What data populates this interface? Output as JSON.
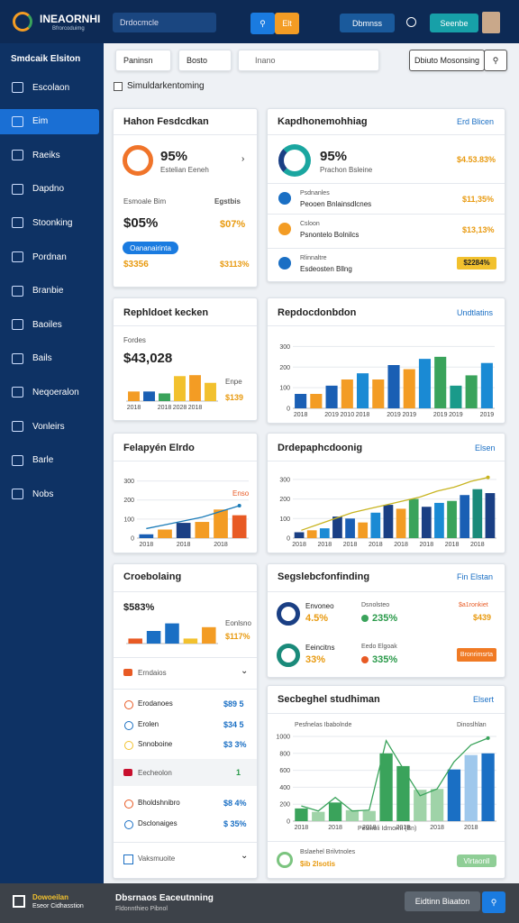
{
  "header": {
    "logo_title": "INEAORNHI",
    "logo_sub": "Bfrorcoduimg",
    "search": "Drdocmcle",
    "orange_button": "Elt",
    "button_1": "Dbmnss",
    "button_2": "Seenbe"
  },
  "sidebar": {
    "heading": "Smdcaik Elsiton",
    "items": [
      "Escolaon",
      "Eim",
      "Raeiks",
      "Dapdno",
      "Stoonking",
      "Pordnan",
      "Branbie",
      "Baoiles",
      "Bails",
      "Neqoeralon",
      "Vonleirs",
      "Barle",
      "Nobs"
    ]
  },
  "toolbar": {
    "select_1": "Paninsn",
    "select_2": "Bosto",
    "search": "Inano",
    "button": "Dbiuto Mosonsing",
    "checkbox": "Simuldarkentoming"
  },
  "card_1": {
    "title": "Hahon Fesdcdkan",
    "big": "95%",
    "sub": "Estelian Eeneh",
    "row_label": "Esmoale Bim",
    "row_right": "Egstbis",
    "big_2": "$05%",
    "small_2": "$07%",
    "pill": "Oananairinta",
    "amount_1": "$3356",
    "amount_2": "$3113%"
  },
  "card_2": {
    "title": "Kapdhonemohhiag",
    "link": "Erd Blicen",
    "big": "95%",
    "sub": "Prachon Bsleine",
    "amount": "$4.53.83%",
    "items": [
      {
        "title": "Psdnanles",
        "sub": "Peooen Bnlainsdlcnes",
        "value": "$11,35%"
      },
      {
        "title": "Csloon",
        "sub": "Psnontelo Bolnilcs",
        "value": "$13,13%"
      },
      {
        "title": "Rlinnaltre",
        "sub": "Esdeosten Bllng",
        "value": "$2284%"
      }
    ]
  },
  "card_3": {
    "title": "Rephldoet kecken",
    "label": "Fordes",
    "big": "$43,028",
    "side_label": "Enpe",
    "side_value": "$139"
  },
  "card_4": {
    "title": "Repdocdonbdon",
    "link": "Undtlatins"
  },
  "card_5": {
    "title": "Felapyén Elrdo",
    "legend": "Enso"
  },
  "card_6": {
    "title": "Drdepaphcdoonig",
    "link": "Elsen"
  },
  "card_7": {
    "title": "Croebolaing",
    "big": "$583%",
    "legend": "Eonlsno",
    "legend_value": "$117%",
    "section_1": "Erndaios",
    "items_1": [
      {
        "label": "Erodanoes",
        "value": "$89 5"
      },
      {
        "label": "Erolen",
        "value": "$34 5"
      },
      {
        "label": "Snnoboine",
        "value": "$3 3%"
      }
    ],
    "section_2": "Eecheolon",
    "section_2_value": "1",
    "items_2": [
      {
        "label": "Bholdshnibro",
        "value": "$8 4%"
      },
      {
        "label": "Dsclonaiges",
        "value": "$ 35%"
      }
    ],
    "section_3": "Vaksmuoite"
  },
  "card_8": {
    "title": "Segslebcfonfinding",
    "link": "Fin Elstan",
    "rows": [
      {
        "label": "Envoneo",
        "value": "4.5%",
        "label_2": "Dsnolsteo",
        "value_2": "235%",
        "label_3": "$a1ronkiet",
        "value_3": "$439"
      },
      {
        "label": "Eeincitns",
        "value": "33%",
        "label_2": "Eedo Elgoak",
        "value_2": "335%",
        "button": "Bronrimsrta"
      }
    ]
  },
  "card_9": {
    "title": "Secbeghel studhiman",
    "link": "Elsert",
    "legend": "Pesfnelas Ibabolnde",
    "legend_2": "Dinoslhlan",
    "x_label": "Pesinoli Idmorm (Bn)",
    "foot_title": "Bslaehel Brilvtnoles",
    "foot_sub": "$ib 2lsotis",
    "foot_button": "Vlrtaonll"
  },
  "footer": {
    "brand": "Dowoeilan",
    "brand_sub": "Eseor Cidhasstion",
    "title": "Dbsrnaos Eaceutnning",
    "sub": "Fldonnthieo Pibnol",
    "button": "Eidtinn Biaaton"
  },
  "chart_data": [
    {
      "type": "bar",
      "categories": [
        "2018",
        null,
        "2018",
        "2028",
        "2018",
        null
      ],
      "values": [
        10,
        10,
        8,
        26,
        27,
        19
      ],
      "colors": [
        "#f39c24",
        "#1a5fb4",
        "#3aa35b",
        "#f2c12e",
        "#f39c24",
        "#f2c12e"
      ],
      "ylim": [
        0,
        30
      ]
    },
    {
      "type": "bar",
      "categories": [
        "2018",
        null,
        "2019",
        "2010",
        "2018",
        null,
        "2019",
        "2019",
        null,
        "2019",
        "2019",
        null,
        "2019"
      ],
      "values": [
        70,
        70,
        110,
        140,
        170,
        140,
        210,
        190,
        240,
        250,
        110,
        160,
        220
      ],
      "colors": [
        "#1a5fb4",
        "#f39c24",
        "#1a5fb4",
        "#f39c24",
        "#1a8ad4",
        "#f39c24",
        "#1a5fb4",
        "#f39c24",
        "#1a8ad4",
        "#3aa35b",
        "#1a9a8a",
        "#3aa35b",
        "#1a8ad4"
      ],
      "ylim": [
        0,
        350
      ],
      "yticks": [
        0,
        100,
        200,
        300
      ],
      "grid": true
    },
    {
      "type": "bar",
      "categories": [
        "2018",
        null,
        "2018",
        null,
        "2018",
        null
      ],
      "values": [
        20,
        45,
        80,
        85,
        150,
        120
      ],
      "colors": [
        "#1a5fb4",
        "#f39c24",
        "#1a3f84",
        "#f39c24",
        "#f39c24",
        "#e85a24"
      ],
      "ylim": [
        0,
        350
      ],
      "yticks": [
        0,
        100,
        200,
        300
      ],
      "grid": true,
      "lines": [
        {
          "color": "#1a7bb8",
          "values": [
            50,
            70,
            90,
            110,
            140,
            170
          ]
        }
      ]
    },
    {
      "type": "bar",
      "categories": [
        "2018",
        null,
        "2018",
        null,
        "2018",
        null,
        "2018",
        null,
        "2018",
        null,
        "2018",
        null,
        "2018",
        null,
        "2018",
        null
      ],
      "values": [
        30,
        40,
        50,
        110,
        100,
        80,
        130,
        170,
        150,
        200,
        160,
        180,
        190,
        220,
        250,
        230
      ],
      "colors": [
        "#1a3f84",
        "#f39c24",
        "#1a8ad4",
        "#1a3f84",
        "#1a5fb4",
        "#f39c24",
        "#1a8ad4",
        "#1a3f84",
        "#f39c24",
        "#3aa35b",
        "#1a3f84",
        "#1a8ad4",
        "#3aa35b",
        "#1a5fb4",
        "#1a8a7a",
        "#1a3f84"
      ],
      "ylim": [
        0,
        350
      ],
      "yticks": [
        0,
        100,
        200,
        300
      ],
      "grid": true,
      "lines": [
        {
          "color": "#c8b420",
          "values": [
            40,
            70,
            100,
            130,
            150,
            170,
            190,
            210,
            240,
            260,
            290,
            310
          ]
        }
      ]
    },
    {
      "type": "bar",
      "categories": [
        null,
        null,
        null,
        null,
        null
      ],
      "values": [
        20,
        50,
        80,
        20,
        65
      ],
      "colors": [
        "#e85a24",
        "#1a6fc4",
        "#1a6fc4",
        "#f2c12e",
        "#f39c24"
      ],
      "ylim": [
        0,
        100
      ]
    },
    {
      "type": "bar",
      "categories": [
        "2018",
        null,
        "2018",
        null,
        "2018",
        null,
        "2018",
        null,
        "2018",
        null,
        "2018",
        null
      ],
      "values": [
        150,
        110,
        220,
        130,
        120,
        800,
        650,
        370,
        380,
        610,
        780,
        800
      ],
      "colors": [
        "#3aa35b",
        "#9fd3a8",
        "#3aa35b",
        "#9fd3a8",
        "#9fd3a8",
        "#3aa35b",
        "#3aa35b",
        "#9fd3a8",
        "#9fd3a8",
        "#1a6fc4",
        "#9fc8ec",
        "#1a6fc4"
      ],
      "ylim": [
        0,
        1000
      ],
      "yticks": [
        0,
        200,
        400,
        600,
        800,
        1000
      ],
      "grid": true,
      "lines": [
        {
          "color": "#3aa35b",
          "values": [
            180,
            120,
            280,
            120,
            130,
            950,
            620,
            300,
            380,
            700,
            900,
            980
          ]
        }
      ]
    }
  ]
}
